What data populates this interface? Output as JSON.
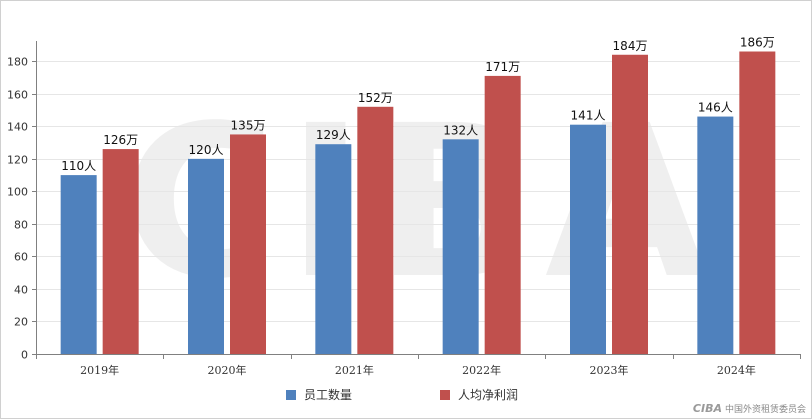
{
  "chart_data": {
    "type": "bar",
    "categories": [
      "2019年",
      "2020年",
      "2021年",
      "2022年",
      "2023年",
      "2024年"
    ],
    "series": [
      {
        "name": "员工数量",
        "color": "#4f81bd",
        "values": [
          110,
          120,
          129,
          132,
          141,
          146
        ],
        "labels": [
          "110人",
          "120人",
          "129人",
          "132人",
          "141人",
          "146人"
        ]
      },
      {
        "name": "人均净利润",
        "color": "#c0504d",
        "values": [
          126,
          135,
          152,
          171,
          184,
          186
        ],
        "labels": [
          "126万",
          "135万",
          "152万",
          "171万",
          "184万",
          "186万"
        ]
      }
    ],
    "ylim": [
      0,
      190
    ],
    "yticks": [
      0,
      20,
      40,
      60,
      80,
      100,
      120,
      140,
      160,
      180
    ],
    "grid": true,
    "legend_position": "bottom",
    "watermark": "CIBA"
  },
  "footer": {
    "logo_text": "CIBA",
    "org_name": "中国外资租赁委员会"
  }
}
